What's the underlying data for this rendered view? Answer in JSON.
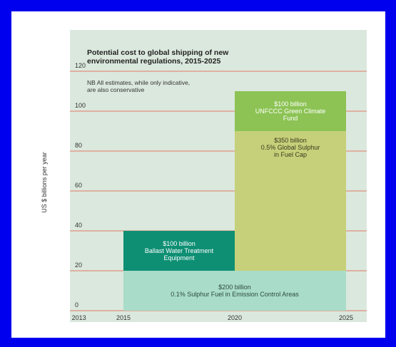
{
  "colors": {
    "page_background": "#0000ee",
    "slide_background": "#ffffff",
    "plot_background": "#dbe8dd",
    "gridline": "#e07a68",
    "emission_control_areas": "#a9dcc9",
    "ballast_water": "#0e8f74",
    "global_sulphur_cap": "#c6d07a",
    "green_climate_fund": "#8cc354"
  },
  "chart_data": {
    "type": "bar",
    "title_lines": [
      "Potential cost to global shipping of new",
      "environmental regulations,  2015-2025"
    ],
    "note_lines": [
      "NB All estimates, while only indicative,",
      "are also conservative"
    ],
    "ylabel": "US $ billions per year",
    "ylim": [
      0,
      120
    ],
    "yticks": [
      0,
      20,
      40,
      60,
      80,
      100,
      120
    ],
    "xlim": [
      2012,
      2026
    ],
    "xticks": [
      2013,
      2015,
      2020,
      2025
    ],
    "grid": true,
    "segments": [
      {
        "id": "emission-control-areas",
        "x_start": 2015,
        "x_end": 2025,
        "y_bottom": 0,
        "y_top": 20,
        "label_lines": [
          "$200 billion",
          "0.1% Sulphur Fuel in Emission Control Areas"
        ],
        "color_key": "emission_control_areas",
        "text_color": "#2d4a3e"
      },
      {
        "id": "ballast-water",
        "x_start": 2015,
        "x_end": 2020,
        "y_bottom": 20,
        "y_top": 40,
        "label_lines": [
          "$100 billion",
          "Ballast Water Treatment",
          "Equipment"
        ],
        "color_key": "ballast_water",
        "text_color": "#ffffff"
      },
      {
        "id": "global-sulphur-cap",
        "x_start": 2020,
        "x_end": 2025,
        "y_bottom": 20,
        "y_top": 90,
        "label_lines": [
          "$350 billion",
          "0.5% Global Sulphur",
          "in Fuel Cap"
        ],
        "color_key": "global_sulphur_cap",
        "text_color": "#3a3a1e"
      },
      {
        "id": "green-climate-fund",
        "x_start": 2020,
        "x_end": 2025,
        "y_bottom": 90,
        "y_top": 110,
        "label_lines": [
          "$100 billion",
          "UNFCCC Green Climate",
          "Fund"
        ],
        "color_key": "green_climate_fund",
        "text_color": "#ffffff"
      }
    ]
  }
}
